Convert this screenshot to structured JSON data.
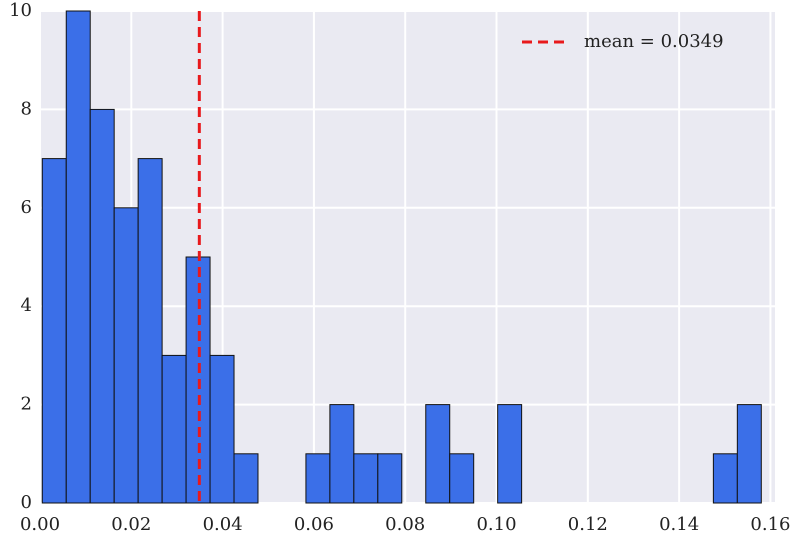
{
  "chart_data": {
    "type": "histogram",
    "bins": [
      0.0005,
      0.00575,
      0.011,
      0.01625,
      0.0215,
      0.02675,
      0.032,
      0.03725,
      0.0425,
      0.04775,
      0.053,
      0.05825,
      0.0635,
      0.06875,
      0.074,
      0.07925,
      0.0845,
      0.08975,
      0.095,
      0.10025,
      0.1055,
      0.11075,
      0.116,
      0.12125,
      0.1265,
      0.13175,
      0.137,
      0.14225,
      0.1475,
      0.15275,
      0.158
    ],
    "values": [
      7,
      10,
      8,
      6,
      7,
      3,
      5,
      3,
      1,
      0,
      0,
      1,
      2,
      1,
      1,
      0,
      2,
      1,
      0,
      2,
      0,
      0,
      0,
      0,
      0,
      0,
      0,
      0,
      1,
      2
    ],
    "color": "#3b6fe8",
    "mean_line": {
      "value": 0.0349,
      "label": "mean = 0.0349",
      "color": "#e8191c"
    },
    "xlim": [
      0,
      0.161
    ],
    "ylim": [
      0,
      10
    ],
    "xticks": [
      {
        "value": 0,
        "label": "0.00"
      },
      0.02,
      0.04,
      0.06,
      0.08,
      {
        "value": 0.1,
        "label": "0.10"
      },
      0.12,
      0.14,
      0.16
    ],
    "yticks": [
      0,
      2,
      4,
      6,
      8,
      10
    ],
    "grid": true,
    "legend": "upper right"
  }
}
